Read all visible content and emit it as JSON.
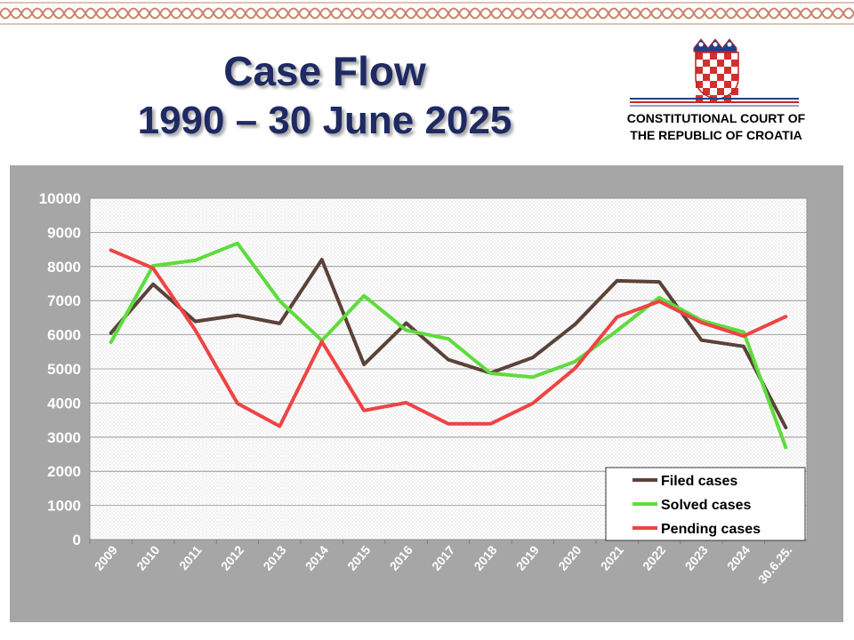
{
  "title": {
    "line1": "Case Flow",
    "line2": "1990 – 30 June 2025"
  },
  "institution": {
    "line1": "CONSTITUTIONAL COURT OF",
    "line2": "THE REPUBLIC OF CROATIA",
    "emblem_icon": "croatian-coat-of-arms-icon"
  },
  "colors": {
    "title": "#1f2a63",
    "chart_background": "#a6a6a6",
    "filed": "#5b4238",
    "solved": "#5edc3c",
    "pending": "#ee4444",
    "border_ornament": "#c9836a"
  },
  "chart_data": {
    "type": "line",
    "categories": [
      "2009",
      "2010",
      "2011",
      "2012",
      "2013",
      "2014",
      "2015",
      "2016",
      "2017",
      "2018",
      "2019",
      "2020",
      "2021",
      "2022",
      "2023",
      "2024",
      "30.6.25."
    ],
    "series": [
      {
        "name": "Filed cases",
        "values": [
          6050,
          7480,
          6390,
          6570,
          6330,
          8200,
          5130,
          6340,
          5270,
          4880,
          5330,
          6300,
          7580,
          7550,
          5840,
          5660,
          3280
        ]
      },
      {
        "name": "Solved cases",
        "values": [
          5780,
          8020,
          8180,
          8680,
          6990,
          5830,
          7140,
          6130,
          5880,
          4870,
          4760,
          5210,
          6120,
          7090,
          6420,
          6080,
          2700
        ]
      },
      {
        "name": "Pending cases",
        "values": [
          8480,
          7950,
          6140,
          3990,
          3320,
          5800,
          3780,
          4010,
          3390,
          3390,
          3990,
          5010,
          6520,
          6980,
          6360,
          5960,
          6530
        ]
      }
    ],
    "yticks": [
      "0",
      "1000",
      "2000",
      "3000",
      "4000",
      "5000",
      "6000",
      "7000",
      "8000",
      "9000",
      "10000"
    ],
    "ylim": [
      0,
      10000
    ],
    "grid": true,
    "legend": "bottom-right"
  }
}
